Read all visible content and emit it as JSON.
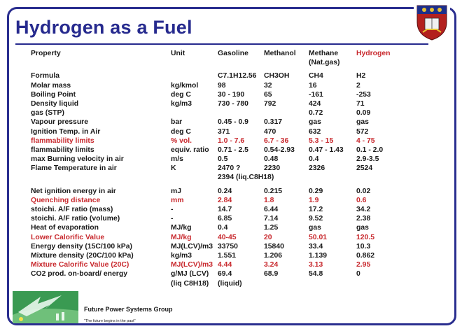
{
  "title": "Hydrogen as a Fuel",
  "header": [
    "Property",
    "Unit",
    "Gasoline",
    "Methanol",
    "Methane",
    "Hydrogen"
  ],
  "header_sub": "(Nat.gas)",
  "rows": [
    {
      "p": "Formula",
      "u": "",
      "g": "C7.1H12.56",
      "m": "CH3OH",
      "n": "CH4",
      "h": "H2"
    },
    {
      "p": "Molar mass",
      "u": "kg/kmol",
      "g": "98",
      "m": "32",
      "n": "16",
      "h": "2"
    },
    {
      "p": "Boiling Point",
      "u": "deg C",
      "g": "30 - 190",
      "m": "65",
      "n": "-161",
      "h": "-253"
    },
    {
      "p": "Density liquid",
      "u": "kg/m3",
      "g": "730 - 780",
      "m": "792",
      "n": "424",
      "h": "71"
    },
    {
      "p": "gas (STP)",
      "u": "",
      "g": "",
      "m": "",
      "n": "0.72",
      "h": "0.09"
    },
    {
      "p": "Vapour pressure",
      "u": "bar",
      "g": "0.45 - 0.9",
      "m": "0.317",
      "n": "gas",
      "h": "gas"
    },
    {
      "p": "Ignition Temp. in Air",
      "u": "deg C",
      "g": "371",
      "m": "470",
      "n": "632",
      "h": "572"
    },
    {
      "p": "flammability limits",
      "u": "% vol.",
      "g": "1.0 - 7.6",
      "m": "6.7 - 36",
      "n": "5.3 - 15",
      "h": "4 - 75"
    },
    {
      "p": "flammability limits",
      "u": "equiv. ratio",
      "g": "0.71 - 2.5",
      "m": "0.54-2.93",
      "n": "0.47 - 1.43",
      "h": "0.1 - 2.0"
    },
    {
      "p": "max Burning velocity in air",
      "u": "m/s",
      "g": "0.5",
      "m": "0.48",
      "n": "0.4",
      "h": "2.9-3.5"
    },
    {
      "p": "Flame Temperature in air",
      "u": "K",
      "g": "2470  ?",
      "m": "2230",
      "n": "2326",
      "h": "2524"
    },
    {
      "p": "",
      "u": "",
      "g": "2394 (liq.C8H18)",
      "m": "",
      "n": "",
      "h": ""
    },
    {
      "p": "Net ignition energy in air",
      "u": "mJ",
      "g": "0.24",
      "m": "0.215",
      "n": "0.29",
      "h": "0.02"
    },
    {
      "p": "Quenching distance",
      "u": "mm",
      "g": "2.84",
      "m": "1.8",
      "n": "1.9",
      "h": "0.6"
    },
    {
      "p": "stoichi. A/F ratio (mass)",
      "u": "-",
      "g": "14.7",
      "m": "6.44",
      "n": "17.2",
      "h": "34.2"
    },
    {
      "p": "stoichi. A/F ratio (volume)",
      "u": "-",
      "g": "6.85",
      "m": "7.14",
      "n": "9.52",
      "h": "2.38"
    },
    {
      "p": "Heat of evaporation",
      "u": "MJ/kg",
      "g": "0.4",
      "m": "1.25",
      "n": "gas",
      "h": "gas"
    },
    {
      "p": "Lower Calorific Value",
      "u": "MJ/kg",
      "g": "40-45",
      "m": "20",
      "n": "50.01",
      "h": "120.5"
    },
    {
      "p": "Energy density (15C/100 kPa)",
      "u": "MJ(LCV)/m3",
      "g": "33750",
      "m": "15840",
      "n": "33.4",
      "h": "10.3"
    },
    {
      "p": "Mixture density (20C/100 kPa)",
      "u": "kg/m3",
      "g": "1.551",
      "m": "1.206",
      "n": "1.139",
      "h": "0.862"
    },
    {
      "p": "Mixture Calorific Value (20C)",
      "u": "MJ(LCV)/m3",
      "g": "4.44",
      "m": "3.24",
      "n": "3.13",
      "h": "2.95"
    },
    {
      "p": "CO2 prod. on-board/ energy",
      "u": "g/MJ (LCV)",
      "g": "69.4",
      "m": "68.9",
      "n": "54.8",
      "h": "0"
    },
    {
      "p": "",
      "u": "(liq C8H18)",
      "g": "(liquid)",
      "m": "",
      "n": "",
      "h": ""
    }
  ],
  "footer": {
    "org": "Future Power Systems Group",
    "tagline": "\"The future begins in the past\""
  },
  "colors": {
    "title": "#262a8e",
    "highlight": "#c8282d",
    "frame": "#2a2e8f"
  }
}
